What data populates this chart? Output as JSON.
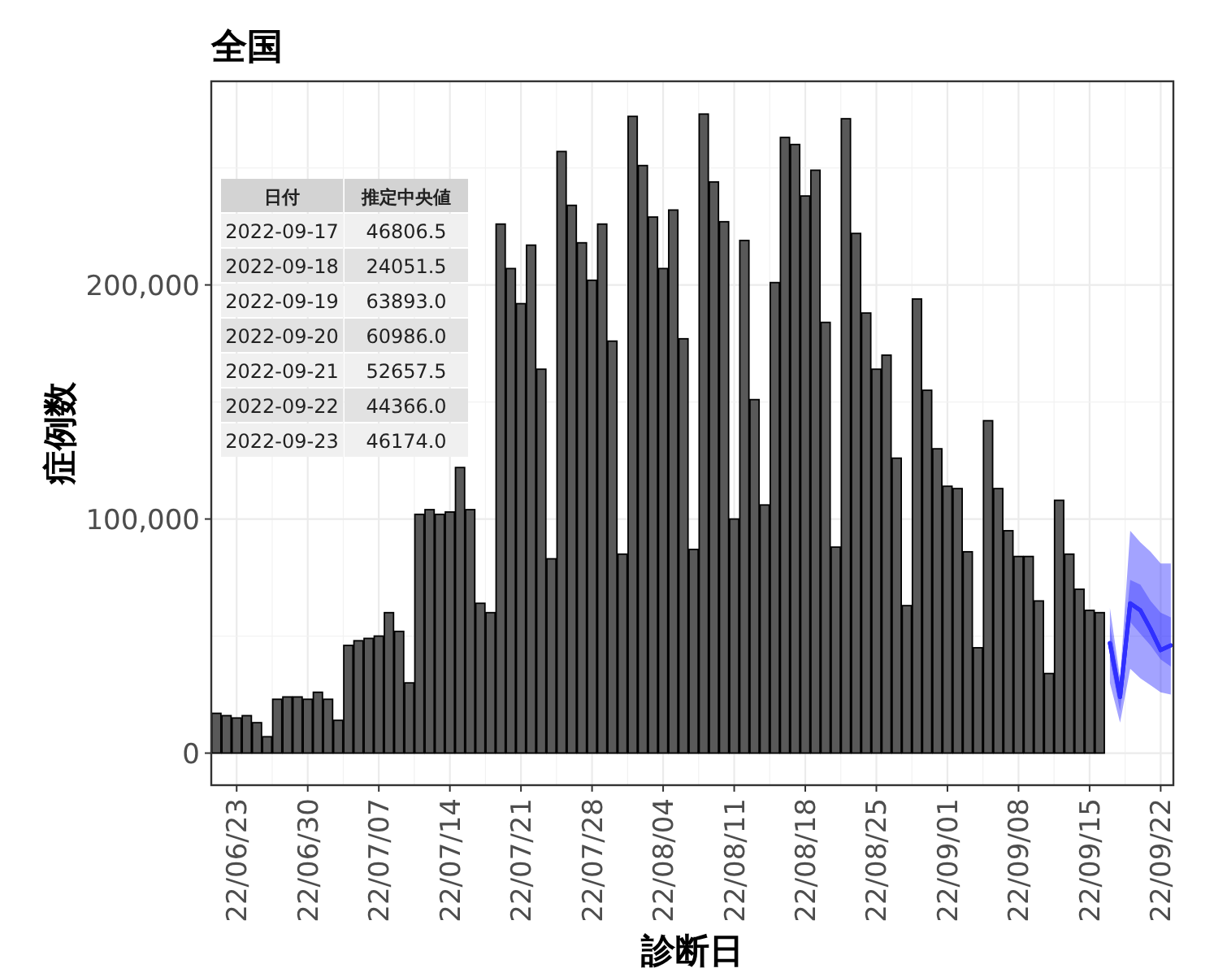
{
  "chart_data": [
    {
      "type": "bar",
      "title": "全国",
      "xlabel": "診断日",
      "ylabel": "症例数",
      "xlim": [
        "2022-06-20T12:00",
        "2022-09-23T06:00"
      ],
      "xticks": [
        {
          "value": "2022-06-23",
          "label": "22/06/23"
        },
        {
          "value": "2022-06-30",
          "label": "22/06/30"
        },
        {
          "value": "2022-07-07",
          "label": "22/07/07"
        },
        {
          "value": "2022-07-14",
          "label": "22/07/14"
        },
        {
          "value": "2022-07-21",
          "label": "22/07/21"
        },
        {
          "value": "2022-07-28",
          "label": "22/07/28"
        },
        {
          "value": "2022-08-04",
          "label": "22/08/04"
        },
        {
          "value": "2022-08-11",
          "label": "22/08/11"
        },
        {
          "value": "2022-08-18",
          "label": "22/08/18"
        },
        {
          "value": "2022-08-25",
          "label": "22/08/25"
        },
        {
          "value": "2022-09-01",
          "label": "22/09/01"
        },
        {
          "value": "2022-09-08",
          "label": "22/09/08"
        },
        {
          "value": "2022-09-15",
          "label": "22/09/15"
        },
        {
          "value": "2022-09-22",
          "label": "22/09/22"
        }
      ],
      "ylim": [
        -13700,
        287000
      ],
      "yticks": [
        0,
        {
          "value": 100000,
          "label": "100,000"
        },
        {
          "value": 200000,
          "label": "200,000"
        }
      ],
      "grid": true,
      "series": [
        {
          "type": "bar",
          "color": "#595959",
          "x": [
            "2022-06-21",
            "2022-06-22",
            "2022-06-23",
            "2022-06-24",
            "2022-06-25",
            "2022-06-26",
            "2022-06-27",
            "2022-06-28",
            "2022-06-29",
            "2022-06-30",
            "2022-07-01",
            "2022-07-02",
            "2022-07-03",
            "2022-07-04",
            "2022-07-05",
            "2022-07-06",
            "2022-07-07",
            "2022-07-08",
            "2022-07-09",
            "2022-07-10",
            "2022-07-11",
            "2022-07-12",
            "2022-07-13",
            "2022-07-14",
            "2022-07-15",
            "2022-07-16",
            "2022-07-17",
            "2022-07-18",
            "2022-07-19",
            "2022-07-20",
            "2022-07-21",
            "2022-07-22",
            "2022-07-23",
            "2022-07-24",
            "2022-07-25",
            "2022-07-26",
            "2022-07-27",
            "2022-07-28",
            "2022-07-29",
            "2022-07-30",
            "2022-07-31",
            "2022-08-01",
            "2022-08-02",
            "2022-08-03",
            "2022-08-04",
            "2022-08-05",
            "2022-08-06",
            "2022-08-07",
            "2022-08-08",
            "2022-08-09",
            "2022-08-10",
            "2022-08-11",
            "2022-08-12",
            "2022-08-13",
            "2022-08-14",
            "2022-08-15",
            "2022-08-16",
            "2022-08-17",
            "2022-08-18",
            "2022-08-19",
            "2022-08-20",
            "2022-08-21",
            "2022-08-22",
            "2022-08-23",
            "2022-08-24",
            "2022-08-25",
            "2022-08-26",
            "2022-08-27",
            "2022-08-28",
            "2022-08-29",
            "2022-08-30",
            "2022-08-31",
            "2022-09-01",
            "2022-09-02",
            "2022-09-03",
            "2022-09-04",
            "2022-09-05",
            "2022-09-06",
            "2022-09-07",
            "2022-09-08",
            "2022-09-09",
            "2022-09-10",
            "2022-09-11",
            "2022-09-12",
            "2022-09-13",
            "2022-09-14",
            "2022-09-15",
            "2022-09-16"
          ],
          "values": [
            17000,
            16000,
            15000,
            16000,
            13000,
            7000,
            23000,
            24000,
            24000,
            23000,
            26000,
            23000,
            14000,
            46000,
            48000,
            49000,
            50000,
            60000,
            52000,
            30000,
            102000,
            104000,
            102000,
            103000,
            122000,
            104000,
            64000,
            60000,
            226000,
            207000,
            192000,
            217000,
            164000,
            83000,
            257000,
            234000,
            218000,
            202000,
            226000,
            176000,
            85000,
            272000,
            251000,
            229000,
            207000,
            232000,
            177000,
            87000,
            273000,
            244000,
            227000,
            100000,
            219000,
            151000,
            106000,
            201000,
            263000,
            260000,
            238000,
            249000,
            184000,
            88000,
            271000,
            222000,
            188000,
            164000,
            170000,
            126000,
            63000,
            194000,
            155000,
            130000,
            114000,
            113000,
            86000,
            45000,
            142000,
            113000,
            95000,
            84000,
            84000,
            65000,
            34000,
            108000,
            85000,
            70000,
            61000,
            60000
          ]
        },
        {
          "type": "line",
          "color": "#1a1aff",
          "x": [
            "2022-09-17",
            "2022-09-18",
            "2022-09-19",
            "2022-09-20",
            "2022-09-21",
            "2022-09-22",
            "2022-09-23"
          ],
          "values": [
            47000,
            24000,
            64000,
            61000,
            53000,
            44000,
            46000
          ],
          "lower": [
            30000,
            13000,
            36000,
            32000,
            29000,
            26000,
            25000
          ],
          "upper": [
            62000,
            32000,
            95000,
            90000,
            86000,
            81000,
            81000
          ]
        },
        {
          "type": "line",
          "color": "#3030ff",
          "x": [
            "2022-09-17",
            "2022-09-18",
            "2022-09-19",
            "2022-09-20",
            "2022-09-21",
            "2022-09-22",
            "2022-09-23"
          ],
          "values": [
            47000,
            24000,
            64000,
            61000,
            53000,
            44000,
            46000
          ],
          "lower": [
            40000,
            18000,
            56000,
            51000,
            46000,
            40000,
            37000
          ],
          "upper": [
            55000,
            29000,
            74000,
            72000,
            65000,
            60000,
            58000
          ]
        }
      ]
    },
    {
      "type": "other",
      "annotations": [
        "日付",
        "推定中央値",
        "2022-09-17",
        "46806.5",
        "2022-09-18",
        "24051.5",
        "2022-09-19",
        "63893.0",
        "2022-09-20",
        "60986.0",
        "2022-09-21",
        "52657.5",
        "2022-09-22",
        "44366.0",
        "2022-09-23",
        "46174.0"
      ]
    }
  ]
}
